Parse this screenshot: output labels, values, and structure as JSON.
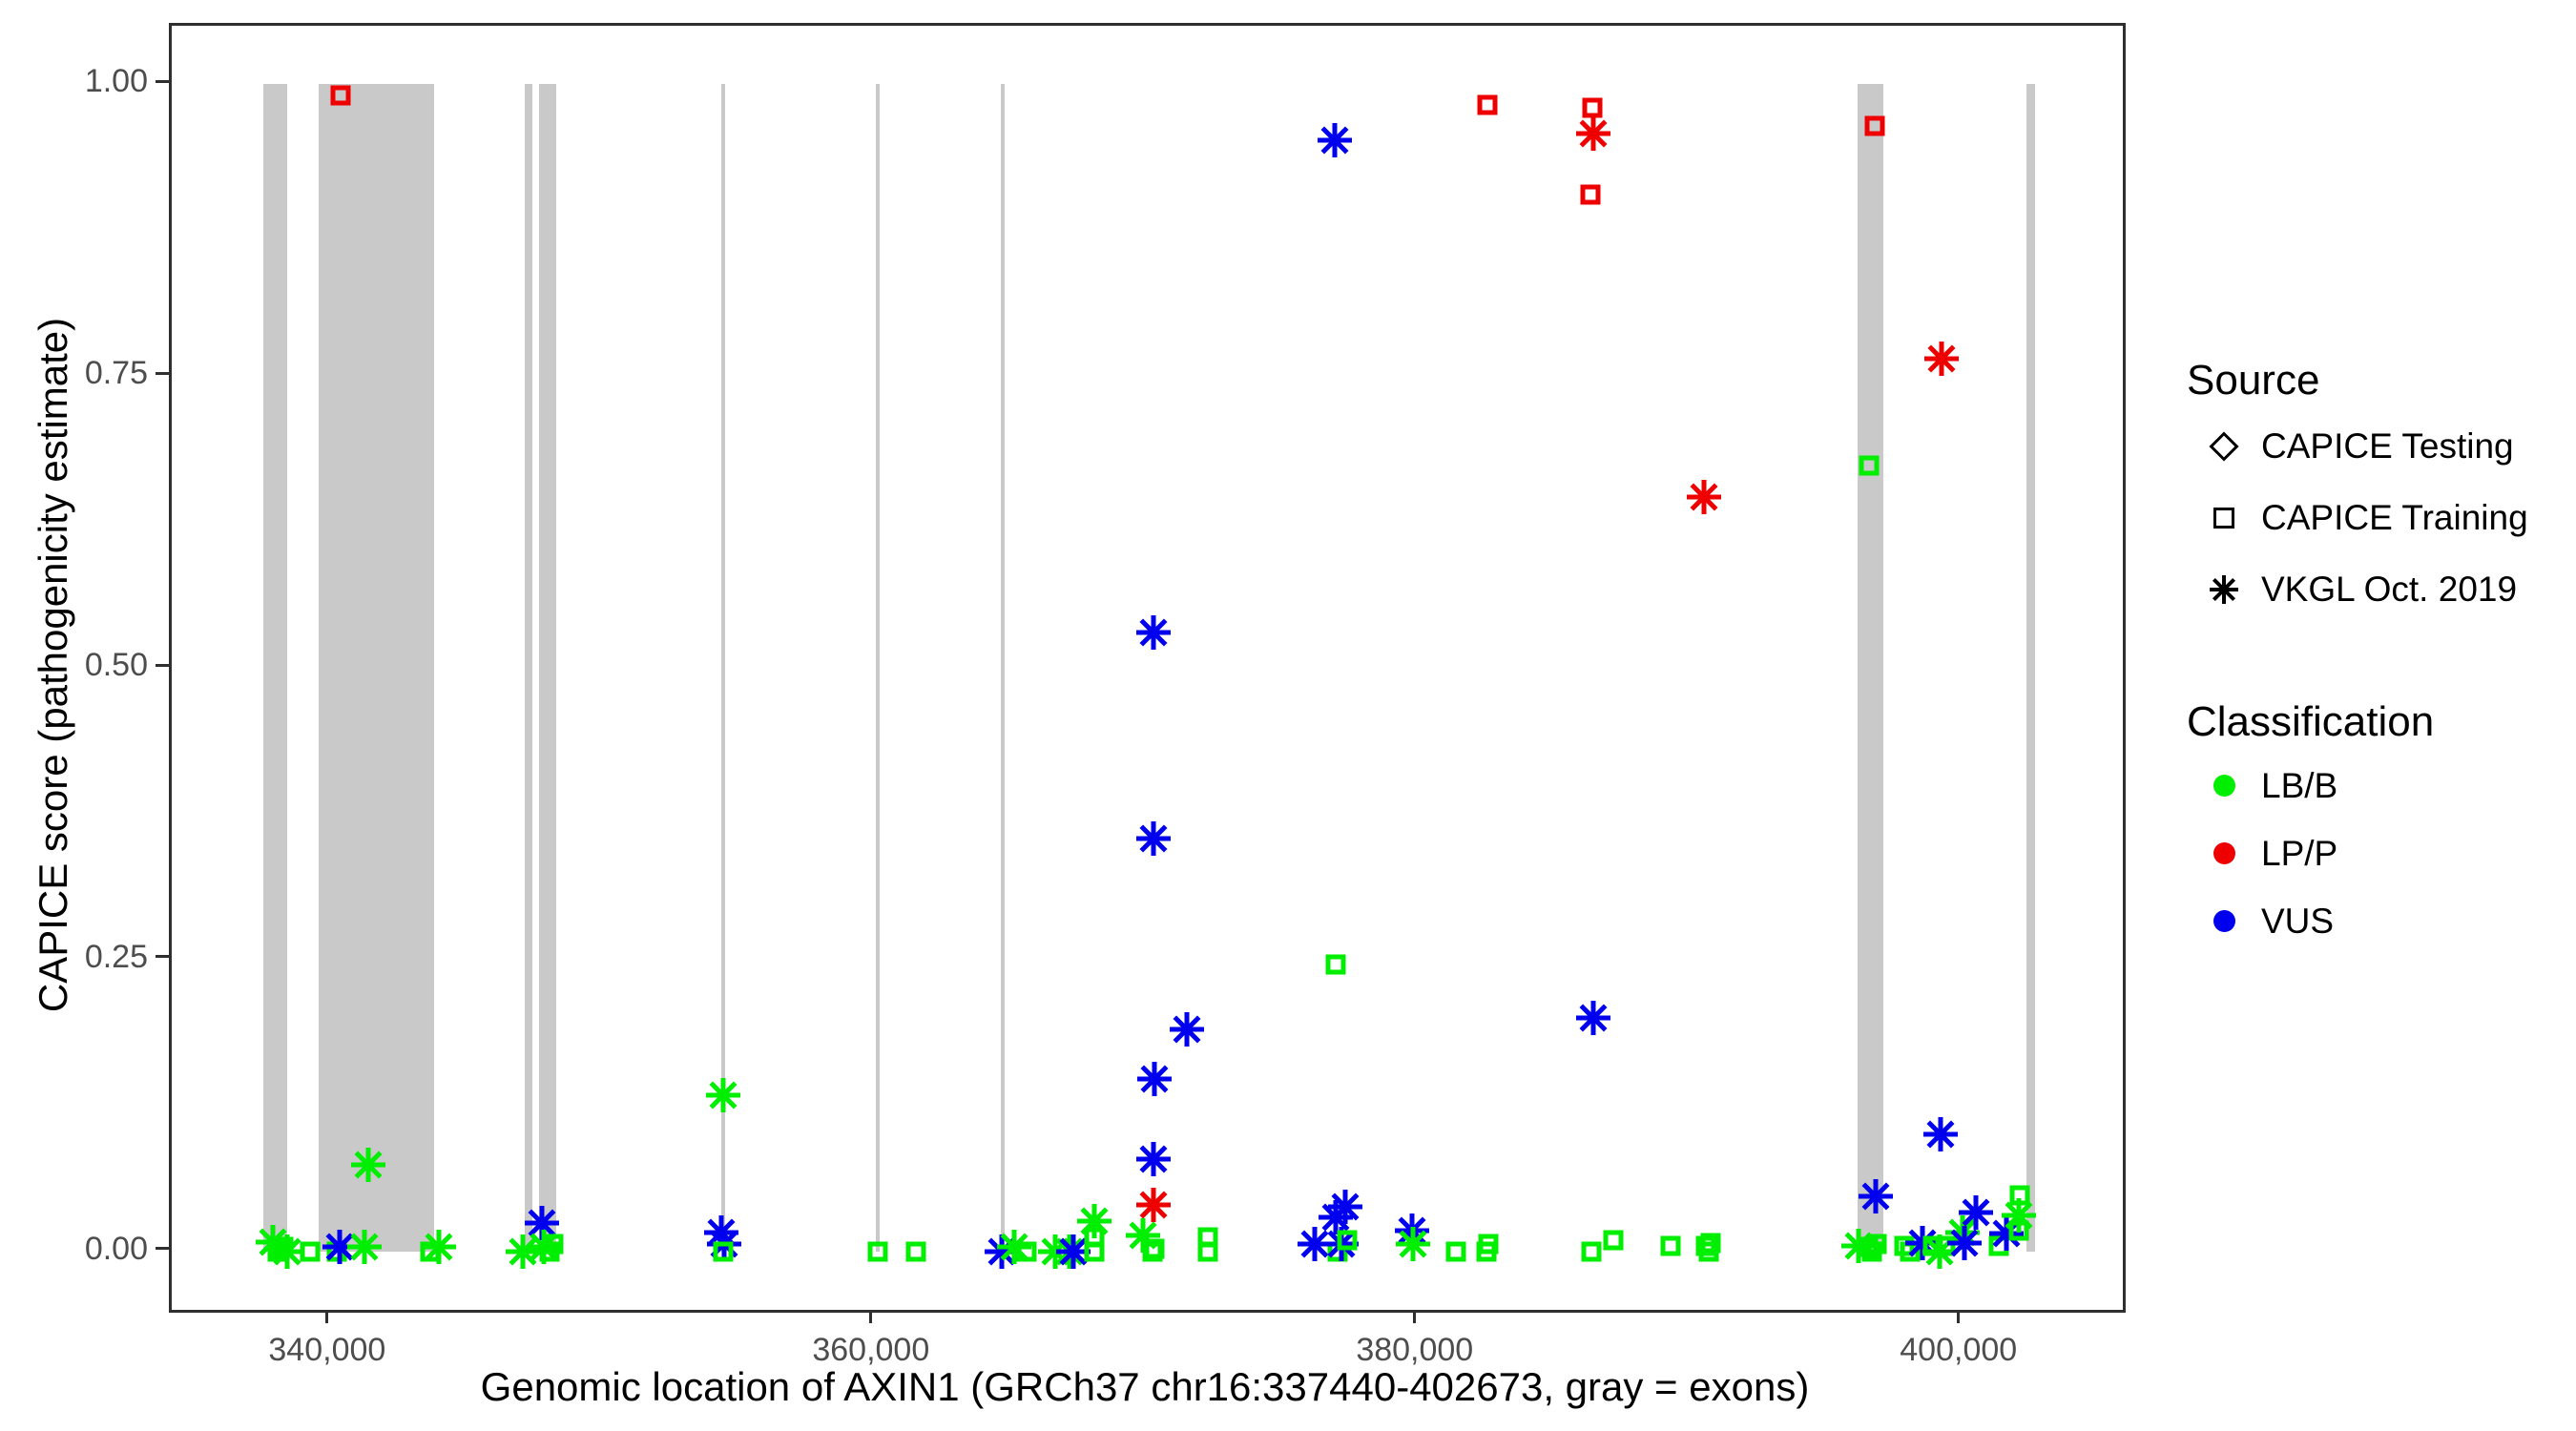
{
  "chart_data": {
    "type": "scatter",
    "xlabel": "Genomic location of AXIN1 (GRCh37 chr16:337440-402673, gray = exons)",
    "ylabel": "CAPICE score (pathogenicity estimate)",
    "xlim": [
      334180,
      405940
    ],
    "ylim": [
      -0.05,
      1.05
    ],
    "grid": false,
    "x_ticks": [
      {
        "value": 340000,
        "label": "340,000"
      },
      {
        "value": 360000,
        "label": "360,000"
      },
      {
        "value": 380000,
        "label": "380,000"
      },
      {
        "value": 400000,
        "label": "400,000"
      }
    ],
    "y_ticks": [
      {
        "value": 0.0,
        "label": "0.00"
      },
      {
        "value": 0.25,
        "label": "0.25"
      },
      {
        "value": 0.5,
        "label": "0.50"
      },
      {
        "value": 0.75,
        "label": "0.75"
      },
      {
        "value": 1.0,
        "label": "1.00"
      }
    ],
    "exon_regions": [
      [
        337540,
        338420
      ],
      [
        339580,
        343820
      ],
      [
        347160,
        347440
      ],
      [
        347680,
        348320
      ],
      [
        354390,
        354530
      ],
      [
        360070,
        360210
      ],
      [
        364670,
        364810
      ],
      [
        396180,
        397120
      ],
      [
        402390,
        402700
      ]
    ],
    "points": {
      "columns": [
        "genomic_position",
        "capice_score",
        "source",
        "classification"
      ],
      "rows": [
        [
          337900,
          0.008,
          "VKGL Oct. 2019",
          "LB/B"
        ],
        [
          338060,
          0.0,
          "CAPICE Training",
          "LB/B"
        ],
        [
          338300,
          0.004,
          "CAPICE Training",
          "LB/B"
        ],
        [
          338430,
          0.0,
          "VKGL Oct. 2019",
          "LB/B"
        ],
        [
          339260,
          0.0,
          "CAPICE Training",
          "LB/B"
        ],
        [
          340260,
          0.0,
          "CAPICE Training",
          "LB/B"
        ],
        [
          340340,
          0.004,
          "VKGL Oct. 2019",
          "VUS"
        ],
        [
          340400,
          0.99,
          "CAPICE Training",
          "LP/P"
        ],
        [
          341260,
          0.004,
          "VKGL Oct. 2019",
          "LB/B"
        ],
        [
          341400,
          0.074,
          "VKGL Oct. 2019",
          "LB/B"
        ],
        [
          343700,
          0.0,
          "CAPICE Training",
          "LB/B"
        ],
        [
          344010,
          0.004,
          "VKGL Oct. 2019",
          "LB/B"
        ],
        [
          347100,
          0.0,
          "VKGL Oct. 2019",
          "LB/B"
        ],
        [
          347790,
          0.024,
          "VKGL Oct. 2019",
          "VUS"
        ],
        [
          347860,
          0.004,
          "VKGL Oct. 2019",
          "LB/B"
        ],
        [
          348060,
          0.0,
          "CAPICE Training",
          "LB/B"
        ],
        [
          348210,
          0.006,
          "CAPICE Training",
          "LB/B"
        ],
        [
          354400,
          0.016,
          "VKGL Oct. 2019",
          "VUS"
        ],
        [
          354460,
          0.134,
          "VKGL Oct. 2019",
          "LB/B"
        ],
        [
          354480,
          0.006,
          "VKGL Oct. 2019",
          "VUS"
        ],
        [
          354460,
          0.0,
          "CAPICE Training",
          "LB/B"
        ],
        [
          360150,
          0.0,
          "CAPICE Training",
          "LB/B"
        ],
        [
          361540,
          0.0,
          "CAPICE Training",
          "LB/B"
        ],
        [
          364700,
          0.0,
          "VKGL Oct. 2019",
          "VUS"
        ],
        [
          365160,
          0.004,
          "VKGL Oct. 2019",
          "LB/B"
        ],
        [
          365610,
          0.0,
          "CAPICE Training",
          "LB/B"
        ],
        [
          366670,
          0.0,
          "VKGL Oct. 2019",
          "LB/B"
        ],
        [
          367190,
          0.0,
          "VKGL Oct. 2019",
          "LB/B"
        ],
        [
          367340,
          0.0,
          "VKGL Oct. 2019",
          "VUS"
        ],
        [
          368100,
          0.026,
          "VKGL Oct. 2019",
          "LB/B"
        ],
        [
          368100,
          0.012,
          "CAPICE Training",
          "LB/B"
        ],
        [
          368110,
          0.0,
          "CAPICE Training",
          "LB/B"
        ],
        [
          369890,
          0.014,
          "VKGL Oct. 2019",
          "LB/B"
        ],
        [
          370250,
          0.0,
          "CAPICE Training",
          "LB/B"
        ],
        [
          370340,
          0.002,
          "CAPICE Training",
          "LB/B"
        ],
        [
          370300,
          0.04,
          "VKGL Oct. 2019",
          "LP/P"
        ],
        [
          370300,
          0.079,
          "VKGL Oct. 2019",
          "VUS"
        ],
        [
          370310,
          0.148,
          "VKGL Oct. 2019",
          "VUS"
        ],
        [
          370300,
          0.354,
          "VKGL Oct. 2019",
          "VUS"
        ],
        [
          370300,
          0.53,
          "VKGL Oct. 2019",
          "VUS"
        ],
        [
          371510,
          0.19,
          "VKGL Oct. 2019",
          "VUS"
        ],
        [
          372280,
          0.012,
          "CAPICE Training",
          "LB/B"
        ],
        [
          372280,
          0.0,
          "CAPICE Training",
          "LB/B"
        ],
        [
          376210,
          0.006,
          "VKGL Oct. 2019",
          "VUS"
        ],
        [
          377050,
          0.0,
          "CAPICE Training",
          "LB/B"
        ],
        [
          377000,
          0.029,
          "VKGL Oct. 2019",
          "VUS"
        ],
        [
          377200,
          0.006,
          "VKGL Oct. 2019",
          "VUS"
        ],
        [
          377330,
          0.038,
          "VKGL Oct. 2019",
          "VUS"
        ],
        [
          377400,
          0.01,
          "CAPICE Training",
          "LB/B"
        ],
        [
          376980,
          0.246,
          "CAPICE Training",
          "LB/B"
        ],
        [
          376950,
          0.952,
          "VKGL Oct. 2019",
          "VUS"
        ],
        [
          379800,
          0.018,
          "VKGL Oct. 2019",
          "VUS"
        ],
        [
          379830,
          0.006,
          "VKGL Oct. 2019",
          "LB/B"
        ],
        [
          381400,
          0.0,
          "CAPICE Training",
          "LB/B"
        ],
        [
          382520,
          0.0,
          "CAPICE Training",
          "LB/B"
        ],
        [
          382610,
          0.006,
          "CAPICE Training",
          "LB/B"
        ],
        [
          382560,
          0.982,
          "CAPICE Training",
          "LP/P"
        ],
        [
          386390,
          0.0,
          "CAPICE Training",
          "LB/B"
        ],
        [
          387190,
          0.01,
          "CAPICE Training",
          "LB/B"
        ],
        [
          386420,
          0.98,
          "CAPICE Training",
          "LP/P"
        ],
        [
          386460,
          0.958,
          "VKGL Oct. 2019",
          "LP/P"
        ],
        [
          386350,
          0.905,
          "CAPICE Training",
          "LP/P"
        ],
        [
          386450,
          0.2,
          "VKGL Oct. 2019",
          "VUS"
        ],
        [
          389300,
          0.005,
          "CAPICE Training",
          "LB/B"
        ],
        [
          390610,
          0.005,
          "CAPICE Training",
          "LB/B"
        ],
        [
          390700,
          0.0,
          "CAPICE Training",
          "LB/B"
        ],
        [
          390790,
          0.007,
          "CAPICE Training",
          "LB/B"
        ],
        [
          390530,
          0.646,
          "VKGL Oct. 2019",
          "LP/P"
        ],
        [
          396210,
          0.005,
          "VKGL Oct. 2019",
          "LB/B"
        ],
        [
          396560,
          0.004,
          "CAPICE Training",
          "LB/B"
        ],
        [
          396710,
          0.0,
          "CAPICE Training",
          "LB/B"
        ],
        [
          396900,
          0.006,
          "CAPICE Training",
          "LB/B"
        ],
        [
          396840,
          0.047,
          "VKGL Oct. 2019",
          "VUS"
        ],
        [
          396810,
          0.964,
          "CAPICE Training",
          "LP/P"
        ],
        [
          396600,
          0.673,
          "CAPICE Training",
          "LB/B"
        ],
        [
          397900,
          0.005,
          "CAPICE Training",
          "LB/B"
        ],
        [
          398110,
          0.0,
          "CAPICE Training",
          "LB/B"
        ],
        [
          398560,
          0.007,
          "VKGL Oct. 2019",
          "VUS"
        ],
        [
          398950,
          0.005,
          "CAPICE Training",
          "LB/B"
        ],
        [
          399200,
          0.0,
          "VKGL Oct. 2019",
          "LB/B"
        ],
        [
          399420,
          0.005,
          "CAPICE Training",
          "LB/B"
        ],
        [
          399260,
          0.765,
          "VKGL Oct. 2019",
          "LP/P"
        ],
        [
          399230,
          0.1,
          "VKGL Oct. 2019",
          "VUS"
        ],
        [
          400030,
          0.016,
          "VKGL Oct. 2019",
          "LB/B"
        ],
        [
          400100,
          0.007,
          "VKGL Oct. 2019",
          "VUS"
        ],
        [
          400530,
          0.033,
          "VKGL Oct. 2019",
          "VUS"
        ],
        [
          401370,
          0.005,
          "CAPICE Training",
          "LB/B"
        ],
        [
          401650,
          0.015,
          "VKGL Oct. 2019",
          "VUS"
        ],
        [
          402140,
          0.048,
          "CAPICE Training",
          "LB/B"
        ],
        [
          402120,
          0.031,
          "VKGL Oct. 2019",
          "LB/B"
        ],
        [
          402130,
          0.018,
          "CAPICE Training",
          "LB/B"
        ]
      ]
    }
  },
  "legend": {
    "source": {
      "title": "Source",
      "items": [
        {
          "label": "CAPICE Testing",
          "shape": "diamond"
        },
        {
          "label": "CAPICE Training",
          "shape": "square"
        },
        {
          "label": "VKGL Oct. 2019",
          "shape": "asterisk"
        }
      ]
    },
    "classification": {
      "title": "Classification",
      "items": [
        {
          "label": "LB/B",
          "color_key": "LB/B"
        },
        {
          "label": "LP/P",
          "color_key": "LP/P"
        },
        {
          "label": "VUS",
          "color_key": "VUS"
        }
      ]
    }
  },
  "colors": {
    "LB/B": "#00ee00",
    "LP/P": "#ee0000",
    "VUS": "#0000ee",
    "exon": "#c9c9c9",
    "axis_text": "#4d4d4d",
    "panel_border": "#2f2f2f"
  },
  "shape_by_source": {
    "CAPICE Testing": "diamond",
    "CAPICE Training": "square",
    "VKGL Oct. 2019": "asterisk"
  }
}
